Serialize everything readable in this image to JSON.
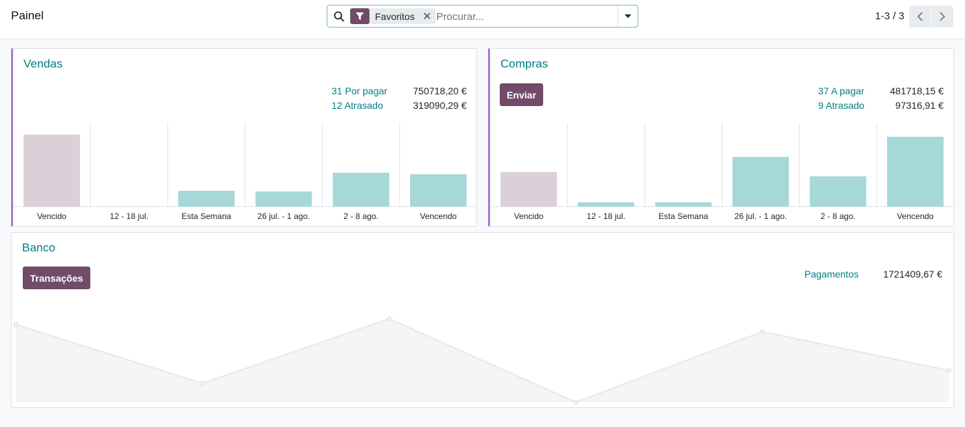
{
  "header": {
    "title": "Painel",
    "search": {
      "facet_label": "Favoritos",
      "placeholder": "Procurar..."
    },
    "pager": {
      "value": "1-3 / 3"
    }
  },
  "colors": {
    "brand": "#714b67",
    "teal_text": "#017e84",
    "bar_past": "#dcd0d8",
    "bar_future": "#a5d8d7",
    "accent_border": "#a57bd7"
  },
  "sales": {
    "title": "Vendas",
    "stats": [
      {
        "label": "31 Por pagar",
        "value": "750718,20 €"
      },
      {
        "label": "12 Atrasado",
        "value": "319090,29 €"
      }
    ]
  },
  "purchases": {
    "title": "Compras",
    "button_label": "Enviar",
    "stats": [
      {
        "label": "37 A pagar",
        "value": "481718,15 €"
      },
      {
        "label": "9 Atrasado",
        "value": "97316,91 €"
      }
    ]
  },
  "bank": {
    "title": "Banco",
    "button_label": "Transações",
    "stats": [
      {
        "label": "Pagamentos",
        "value": "1721409,67 €"
      }
    ]
  },
  "chart_data": [
    {
      "type": "bar",
      "categories": [
        "Vencido",
        "12 - 18 jul.",
        "Esta Semana",
        "26 jul. - 1 ago.",
        "2 - 8 ago.",
        "Vencendo"
      ],
      "values": [
        100,
        0,
        22,
        21,
        47,
        45
      ],
      "past_count": 1,
      "ylim": [
        0,
        110
      ]
    },
    {
      "type": "bar",
      "categories": [
        "Vencido",
        "12 - 18 jul.",
        "Esta Semana",
        "26 jul. - 1 ago.",
        "2 - 8 ago.",
        "Vencendo"
      ],
      "values": [
        48,
        6,
        6,
        69,
        42,
        97
      ],
      "past_count": 1,
      "ylim": [
        0,
        110
      ]
    },
    {
      "type": "area",
      "values": [
        66,
        16,
        71,
        0,
        60,
        27
      ],
      "ylim": [
        0,
        75
      ]
    }
  ]
}
